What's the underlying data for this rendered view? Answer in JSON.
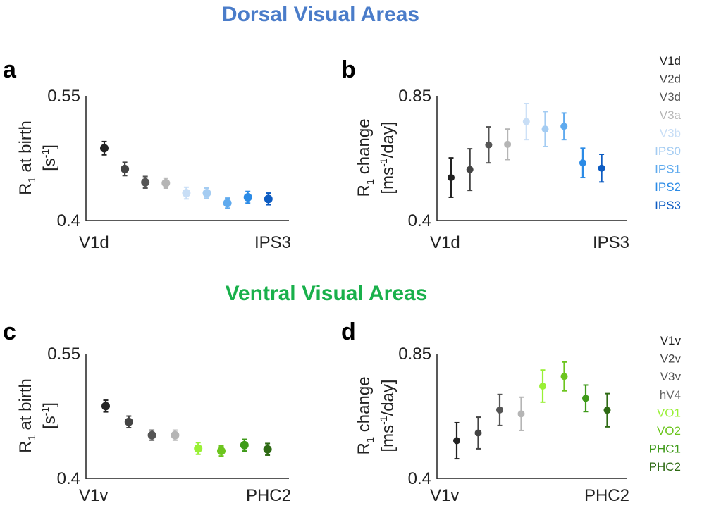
{
  "sections": [
    {
      "title": "Dorsal Visual Areas",
      "color": "#4A7CC9"
    },
    {
      "title": "Ventral Visual Areas",
      "color": "#19B04B"
    }
  ],
  "legends": [
    {
      "items": [
        {
          "label": "V1d",
          "color": "#222222"
        },
        {
          "label": "V2d",
          "color": "#444444"
        },
        {
          "label": "V3d",
          "color": "#555555"
        },
        {
          "label": "V3a",
          "color": "#B5B5B5"
        },
        {
          "label": "V3b",
          "color": "#C8DEF6"
        },
        {
          "label": "IPS0",
          "color": "#A4CCF2"
        },
        {
          "label": "IPS1",
          "color": "#5FAAEE"
        },
        {
          "label": "IPS2",
          "color": "#2B8BE6"
        },
        {
          "label": "IPS3",
          "color": "#0D5CC2"
        }
      ]
    },
    {
      "items": [
        {
          "label": "V1v",
          "color": "#222222"
        },
        {
          "label": "V2v",
          "color": "#444444"
        },
        {
          "label": "V3v",
          "color": "#555555"
        },
        {
          "label": "hV4",
          "color": "#666666"
        },
        {
          "label": "VO1",
          "color": "#99F035"
        },
        {
          "label": "VO2",
          "color": "#6CC51E"
        },
        {
          "label": "PHC1",
          "color": "#3E9A19"
        },
        {
          "label": "PHC2",
          "color": "#2E6A14"
        }
      ]
    }
  ],
  "chart_data": [
    {
      "panel": "a",
      "type": "scatter",
      "title": "",
      "ylabel": {
        "main": "R",
        "sub": "1",
        "rest": " at birth",
        "unit_pre": "[s",
        "unit_sup": "-1",
        "unit_post": "]"
      },
      "yticks": [
        "0.55",
        "0.4"
      ],
      "ylim": [
        0.4,
        0.55
      ],
      "xlabels": [
        "V1d",
        "IPS3"
      ],
      "categories": [
        "V1d",
        "V2d",
        "V3d",
        "V3a",
        "V3b",
        "IPS0",
        "IPS1",
        "IPS2",
        "IPS3"
      ],
      "values": [
        0.487,
        0.462,
        0.446,
        0.445,
        0.433,
        0.433,
        0.421,
        0.428,
        0.426
      ],
      "errors": [
        0.008,
        0.008,
        0.007,
        0.006,
        0.007,
        0.006,
        0.006,
        0.007,
        0.007
      ],
      "colors": [
        "#222222",
        "#444444",
        "#555555",
        "#B5B5B5",
        "#C8DEF6",
        "#A4CCF2",
        "#5FAAEE",
        "#2B8BE6",
        "#0D5CC2"
      ]
    },
    {
      "panel": "b",
      "type": "scatter",
      "title": "",
      "ylabel": {
        "main": "R",
        "sub": "1",
        "rest": " change",
        "unit_pre": "[ms",
        "unit_sup": "-1",
        "unit_post": "/day]"
      },
      "yticks": [
        "0.85",
        "0.4"
      ],
      "ylim": [
        0.4,
        0.85
      ],
      "xlabels": [
        "V1d",
        "IPS3"
      ],
      "categories": [
        "V1d",
        "V2d",
        "V3d",
        "V3a",
        "V3b",
        "IPS0",
        "IPS1",
        "IPS2",
        "IPS3"
      ],
      "values": [
        0.555,
        0.584,
        0.673,
        0.675,
        0.757,
        0.73,
        0.74,
        0.608,
        0.589
      ],
      "errors": [
        0.071,
        0.075,
        0.065,
        0.055,
        0.065,
        0.063,
        0.048,
        0.053,
        0.05
      ],
      "colors": [
        "#222222",
        "#444444",
        "#555555",
        "#B5B5B5",
        "#C8DEF6",
        "#A4CCF2",
        "#5FAAEE",
        "#2B8BE6",
        "#0D5CC2"
      ]
    },
    {
      "panel": "c",
      "type": "scatter",
      "title": "",
      "ylabel": {
        "main": "R",
        "sub": "1",
        "rest": " at birth",
        "unit_pre": "[s",
        "unit_sup": "-1",
        "unit_post": "]"
      },
      "yticks": [
        "0.55",
        "0.4"
      ],
      "ylim": [
        0.4,
        0.55
      ],
      "xlabels": [
        "V1v",
        "PHC2"
      ],
      "categories": [
        "V1v",
        "V2v",
        "V3v",
        "hV4",
        "VO1",
        "VO2",
        "PHC1",
        "PHC2"
      ],
      "values": [
        0.487,
        0.468,
        0.452,
        0.452,
        0.436,
        0.433,
        0.44,
        0.435
      ],
      "errors": [
        0.007,
        0.007,
        0.006,
        0.006,
        0.007,
        0.006,
        0.007,
        0.007
      ],
      "colors": [
        "#222222",
        "#444444",
        "#555555",
        "#B5B5B5",
        "#99F035",
        "#6CC51E",
        "#3E9A19",
        "#2E6A14"
      ]
    },
    {
      "panel": "d",
      "type": "scatter",
      "title": "",
      "ylabel": {
        "main": "R",
        "sub": "1",
        "rest": " change",
        "unit_pre": "[ms",
        "unit_sup": "-1",
        "unit_post": "/day]"
      },
      "yticks": [
        "0.85",
        "0.4"
      ],
      "ylim": [
        0.4,
        0.85
      ],
      "xlabels": [
        "V1v",
        "PHC2"
      ],
      "categories": [
        "V1v",
        "V2v",
        "V3v",
        "hV4",
        "VO1",
        "VO2",
        "PHC1",
        "PHC2"
      ],
      "values": [
        0.536,
        0.564,
        0.647,
        0.633,
        0.733,
        0.768,
        0.689,
        0.646
      ],
      "errors": [
        0.065,
        0.057,
        0.056,
        0.06,
        0.058,
        0.052,
        0.048,
        0.06
      ],
      "colors": [
        "#222222",
        "#444444",
        "#555555",
        "#B5B5B5",
        "#99F035",
        "#6CC51E",
        "#3E9A19",
        "#2E6A14"
      ]
    }
  ]
}
